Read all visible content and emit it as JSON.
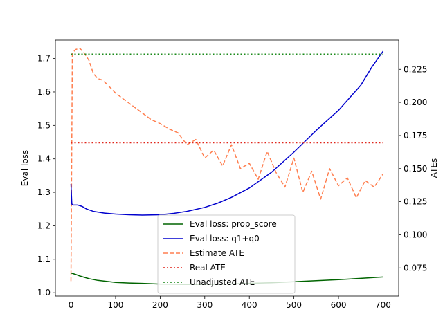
{
  "chart_data": {
    "type": "line",
    "title": "",
    "xlabel": "",
    "ylabel_left": "Eval loss",
    "ylabel_right": "ATEs",
    "xlim": [
      -35,
      735
    ],
    "ylim_left": [
      0.99,
      1.755
    ],
    "ylim_right": [
      0.0537,
      0.2471
    ],
    "x_ticks": [
      0,
      100,
      200,
      300,
      400,
      500,
      600,
      700
    ],
    "y_ticks_left": [
      1.0,
      1.1,
      1.2,
      1.3,
      1.4,
      1.5,
      1.6,
      1.7
    ],
    "y_ticks_right": [
      0.075,
      0.1,
      0.125,
      0.15,
      0.175,
      0.2,
      0.225
    ],
    "grid": false,
    "legend_position": "lower-center",
    "series": [
      {
        "name": "Eval loss: prop_score",
        "axis": "left",
        "color": "#006400",
        "style": "solid",
        "x": [
          0,
          10,
          20,
          40,
          60,
          80,
          100,
          130,
          160,
          200,
          250,
          300,
          350,
          400,
          450,
          500,
          550,
          600,
          650,
          700
        ],
        "y": [
          1.059,
          1.055,
          1.05,
          1.042,
          1.037,
          1.034,
          1.031,
          1.029,
          1.028,
          1.026,
          1.025,
          1.025,
          1.026,
          1.028,
          1.03,
          1.033,
          1.036,
          1.039,
          1.043,
          1.047
        ]
      },
      {
        "name": "Eval loss: q1+q0",
        "axis": "left",
        "color": "#0000cd",
        "style": "solid",
        "x": [
          0,
          2,
          5,
          15,
          25,
          35,
          50,
          75,
          100,
          130,
          160,
          200,
          230,
          260,
          300,
          330,
          360,
          400,
          450,
          500,
          550,
          600,
          650,
          675,
          700
        ],
        "y": [
          1.325,
          1.265,
          1.262,
          1.262,
          1.258,
          1.25,
          1.243,
          1.238,
          1.235,
          1.233,
          1.232,
          1.233,
          1.237,
          1.243,
          1.255,
          1.268,
          1.285,
          1.313,
          1.36,
          1.42,
          1.485,
          1.545,
          1.62,
          1.675,
          1.722
        ]
      },
      {
        "name": "Estimate ATE",
        "axis": "right",
        "color": "#ff7f50",
        "style": "dashed",
        "x": [
          0,
          3,
          10,
          20,
          30,
          40,
          50,
          60,
          70,
          80,
          100,
          120,
          140,
          160,
          180,
          200,
          220,
          240,
          260,
          280,
          300,
          320,
          340,
          360,
          380,
          400,
          420,
          440,
          460,
          480,
          500,
          520,
          540,
          560,
          580,
          600,
          620,
          640,
          660,
          680,
          700
        ],
        "y": [
          0.065,
          0.237,
          0.24,
          0.241,
          0.237,
          0.232,
          0.222,
          0.218,
          0.217,
          0.214,
          0.207,
          0.202,
          0.197,
          0.192,
          0.187,
          0.184,
          0.18,
          0.177,
          0.168,
          0.172,
          0.158,
          0.164,
          0.152,
          0.168,
          0.15,
          0.154,
          0.142,
          0.163,
          0.147,
          0.136,
          0.158,
          0.132,
          0.148,
          0.127,
          0.15,
          0.137,
          0.143,
          0.128,
          0.141,
          0.136,
          0.146
        ]
      },
      {
        "name": "Real ATE",
        "axis": "right",
        "color": "#e0241a",
        "style": "dotted",
        "x": [
          0,
          700
        ],
        "y": [
          0.1695,
          0.1695
        ]
      },
      {
        "name": "Unadjusted ATE",
        "axis": "right",
        "color": "#1a8a1a",
        "style": "dotted",
        "x": [
          0,
          700
        ],
        "y": [
          0.2365,
          0.2365
        ]
      }
    ]
  }
}
